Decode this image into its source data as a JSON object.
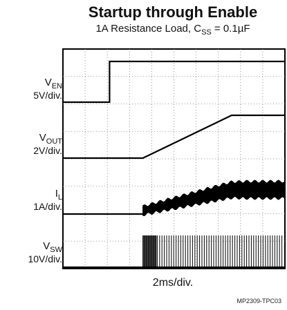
{
  "chart_data": {
    "type": "line",
    "title": "Startup through Enable",
    "subtitle": {
      "prefix": "1A Resistance Load, C",
      "sub": "SS",
      "suffix": " = 0.1µF"
    },
    "xlabel": "2ms/div.",
    "figure_id": "MP2309-TPC03",
    "x_divisions": 10,
    "y_divisions": 8,
    "grid": true,
    "channels": [
      {
        "symbol": "V",
        "sub": "EN",
        "scale": "5V/div."
      },
      {
        "symbol": "V",
        "sub": "OUT",
        "scale": "2V/div."
      },
      {
        "symbol": "I",
        "sub": "L",
        "scale": "1A/div."
      },
      {
        "symbol": "V",
        "sub": "SW",
        "scale": "10V/div."
      }
    ],
    "enable_step_time_div": 2.1,
    "vout_ramp_time_div": [
      3.6,
      7.6
    ],
    "switching_start_time_div": 3.6
  }
}
